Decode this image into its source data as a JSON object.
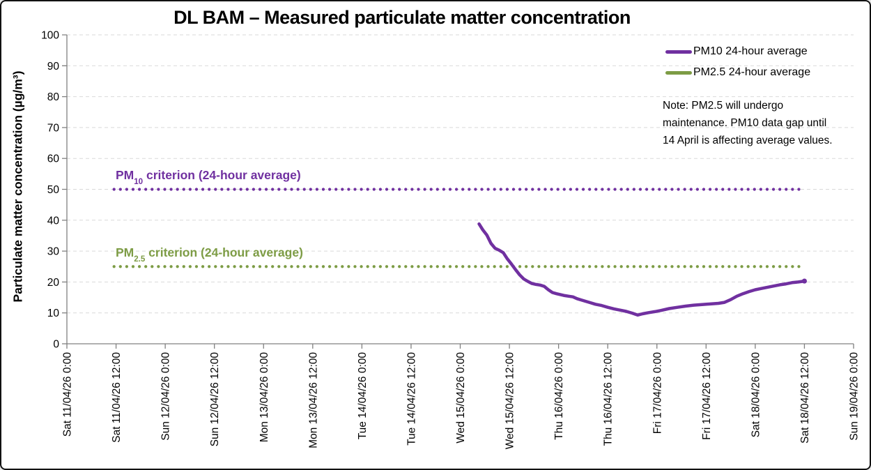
{
  "header": {
    "title": "DL BAM – Measured particulate matter concentration"
  },
  "legend": {
    "items": [
      {
        "label": "PM10 24-hour average",
        "color": "#7030A0"
      },
      {
        "label": "PM2.5 24-hour average",
        "color": "#7D9C45"
      }
    ]
  },
  "note": {
    "text": "Note: PM2.5 will undergo maintenance. PM10 data gap until 14 April is affecting average values."
  },
  "criterion_labels": [
    {
      "prefix": "PM",
      "sub": "10",
      "rest": " criterion (24-hour average)",
      "color": "#7030A0"
    },
    {
      "prefix": "PM",
      "sub": "2.5",
      "rest": " criterion (24-hour average)",
      "color": "#7D9C45"
    }
  ],
  "colors": {
    "pm10": "#7030A0",
    "pm25": "#7D9C45",
    "gridline": "#D9D9D9",
    "axis": "#808080",
    "text": "#000000"
  },
  "chart_data": {
    "type": "line",
    "title": "DL BAM – Measured particulate matter concentration",
    "xlabel": "",
    "ylabel": "Particulate matter concentration (µg/m³)",
    "ylim": [
      0,
      100
    ],
    "y_tick_step": 10,
    "y_tick_labels": [
      "0",
      "10",
      "20",
      "30",
      "40",
      "50",
      "60",
      "70",
      "80",
      "90",
      "100"
    ],
    "grid": "horizontal-dashed",
    "legend_position": "top-right-inside",
    "x_hours_per_tick": 12,
    "x_total_hours": 192,
    "x_tick_labels": [
      "Sat 11/04/26 0:00",
      "Sat 11/04/26 12:00",
      "Sun 12/04/26 0:00",
      "Sun 12/04/26 12:00",
      "Mon 13/04/26 0:00",
      "Mon 13/04/26 12:00",
      "Tue 14/04/26 0:00",
      "Tue 14/04/26 12:00",
      "Wed 15/04/26 0:00",
      "Wed 15/04/26 12:00",
      "Thu 16/04/26 0:00",
      "Thu 16/04/26 12:00",
      "Fri 17/04/26 0:00",
      "Fri 17/04/26 12:00",
      "Sat 18/04/26 0:00",
      "Sat 18/04/26 12:00",
      "Sun 19/04/26 0:00"
    ],
    "reference_lines": [
      {
        "name": "PM10 criterion (24-hour average)",
        "value": 50,
        "color": "#7030A0",
        "style": "dotted",
        "start_hour": 11.5,
        "end_hour": 180
      },
      {
        "name": "PM2.5 criterion (24-hour average)",
        "value": 25,
        "color": "#7D9C45",
        "style": "dotted",
        "start_hour": 11.5,
        "end_hour": 179.7
      }
    ],
    "series": [
      {
        "name": "PM10 24-hour average",
        "color": "#7030A0",
        "units": "µg/m³",
        "points_format": [
          "hours_since_Sat_11/04/26_00:00",
          "concentration"
        ],
        "points": [
          [
            100.6,
            38.8
          ],
          [
            101.5,
            36.9
          ],
          [
            102.5,
            35.2
          ],
          [
            103.5,
            32.5
          ],
          [
            104.5,
            30.9
          ],
          [
            105.5,
            30.3
          ],
          [
            106.5,
            29.5
          ],
          [
            107.5,
            27.5
          ],
          [
            108.5,
            25.8
          ],
          [
            109.5,
            24.0
          ],
          [
            110.5,
            22.3
          ],
          [
            111.5,
            21.0
          ],
          [
            112.5,
            20.2
          ],
          [
            113.5,
            19.5
          ],
          [
            114.5,
            19.2
          ],
          [
            115.5,
            19.0
          ],
          [
            116.5,
            18.6
          ],
          [
            117.5,
            17.5
          ],
          [
            118.5,
            16.6
          ],
          [
            119.5,
            16.2
          ],
          [
            120.5,
            15.9
          ],
          [
            121.5,
            15.6
          ],
          [
            122.5,
            15.4
          ],
          [
            123.5,
            15.2
          ],
          [
            124.5,
            14.6
          ],
          [
            125.5,
            14.2
          ],
          [
            126.5,
            13.8
          ],
          [
            127.5,
            13.4
          ],
          [
            129,
            12.8
          ],
          [
            130.5,
            12.4
          ],
          [
            132,
            11.8
          ],
          [
            133.5,
            11.3
          ],
          [
            135,
            10.9
          ],
          [
            136.5,
            10.5
          ],
          [
            138,
            9.9
          ],
          [
            139.3,
            9.3
          ],
          [
            140.5,
            9.7
          ],
          [
            142,
            10.1
          ],
          [
            143.5,
            10.4
          ],
          [
            145,
            10.8
          ],
          [
            147,
            11.4
          ],
          [
            149,
            11.8
          ],
          [
            151,
            12.2
          ],
          [
            153,
            12.5
          ],
          [
            155,
            12.7
          ],
          [
            157,
            12.9
          ],
          [
            159,
            13.1
          ],
          [
            160.5,
            13.4
          ],
          [
            162,
            14.3
          ],
          [
            163.5,
            15.4
          ],
          [
            165,
            16.2
          ],
          [
            166.5,
            16.9
          ],
          [
            168,
            17.5
          ],
          [
            169.5,
            17.9
          ],
          [
            171,
            18.3
          ],
          [
            172.5,
            18.7
          ],
          [
            174,
            19.1
          ],
          [
            175.5,
            19.4
          ],
          [
            177,
            19.8
          ],
          [
            178.5,
            20.0
          ],
          [
            180,
            20.3
          ]
        ]
      },
      {
        "name": "PM2.5 24-hour average",
        "color": "#7D9C45",
        "units": "µg/m³",
        "points": []
      }
    ]
  }
}
